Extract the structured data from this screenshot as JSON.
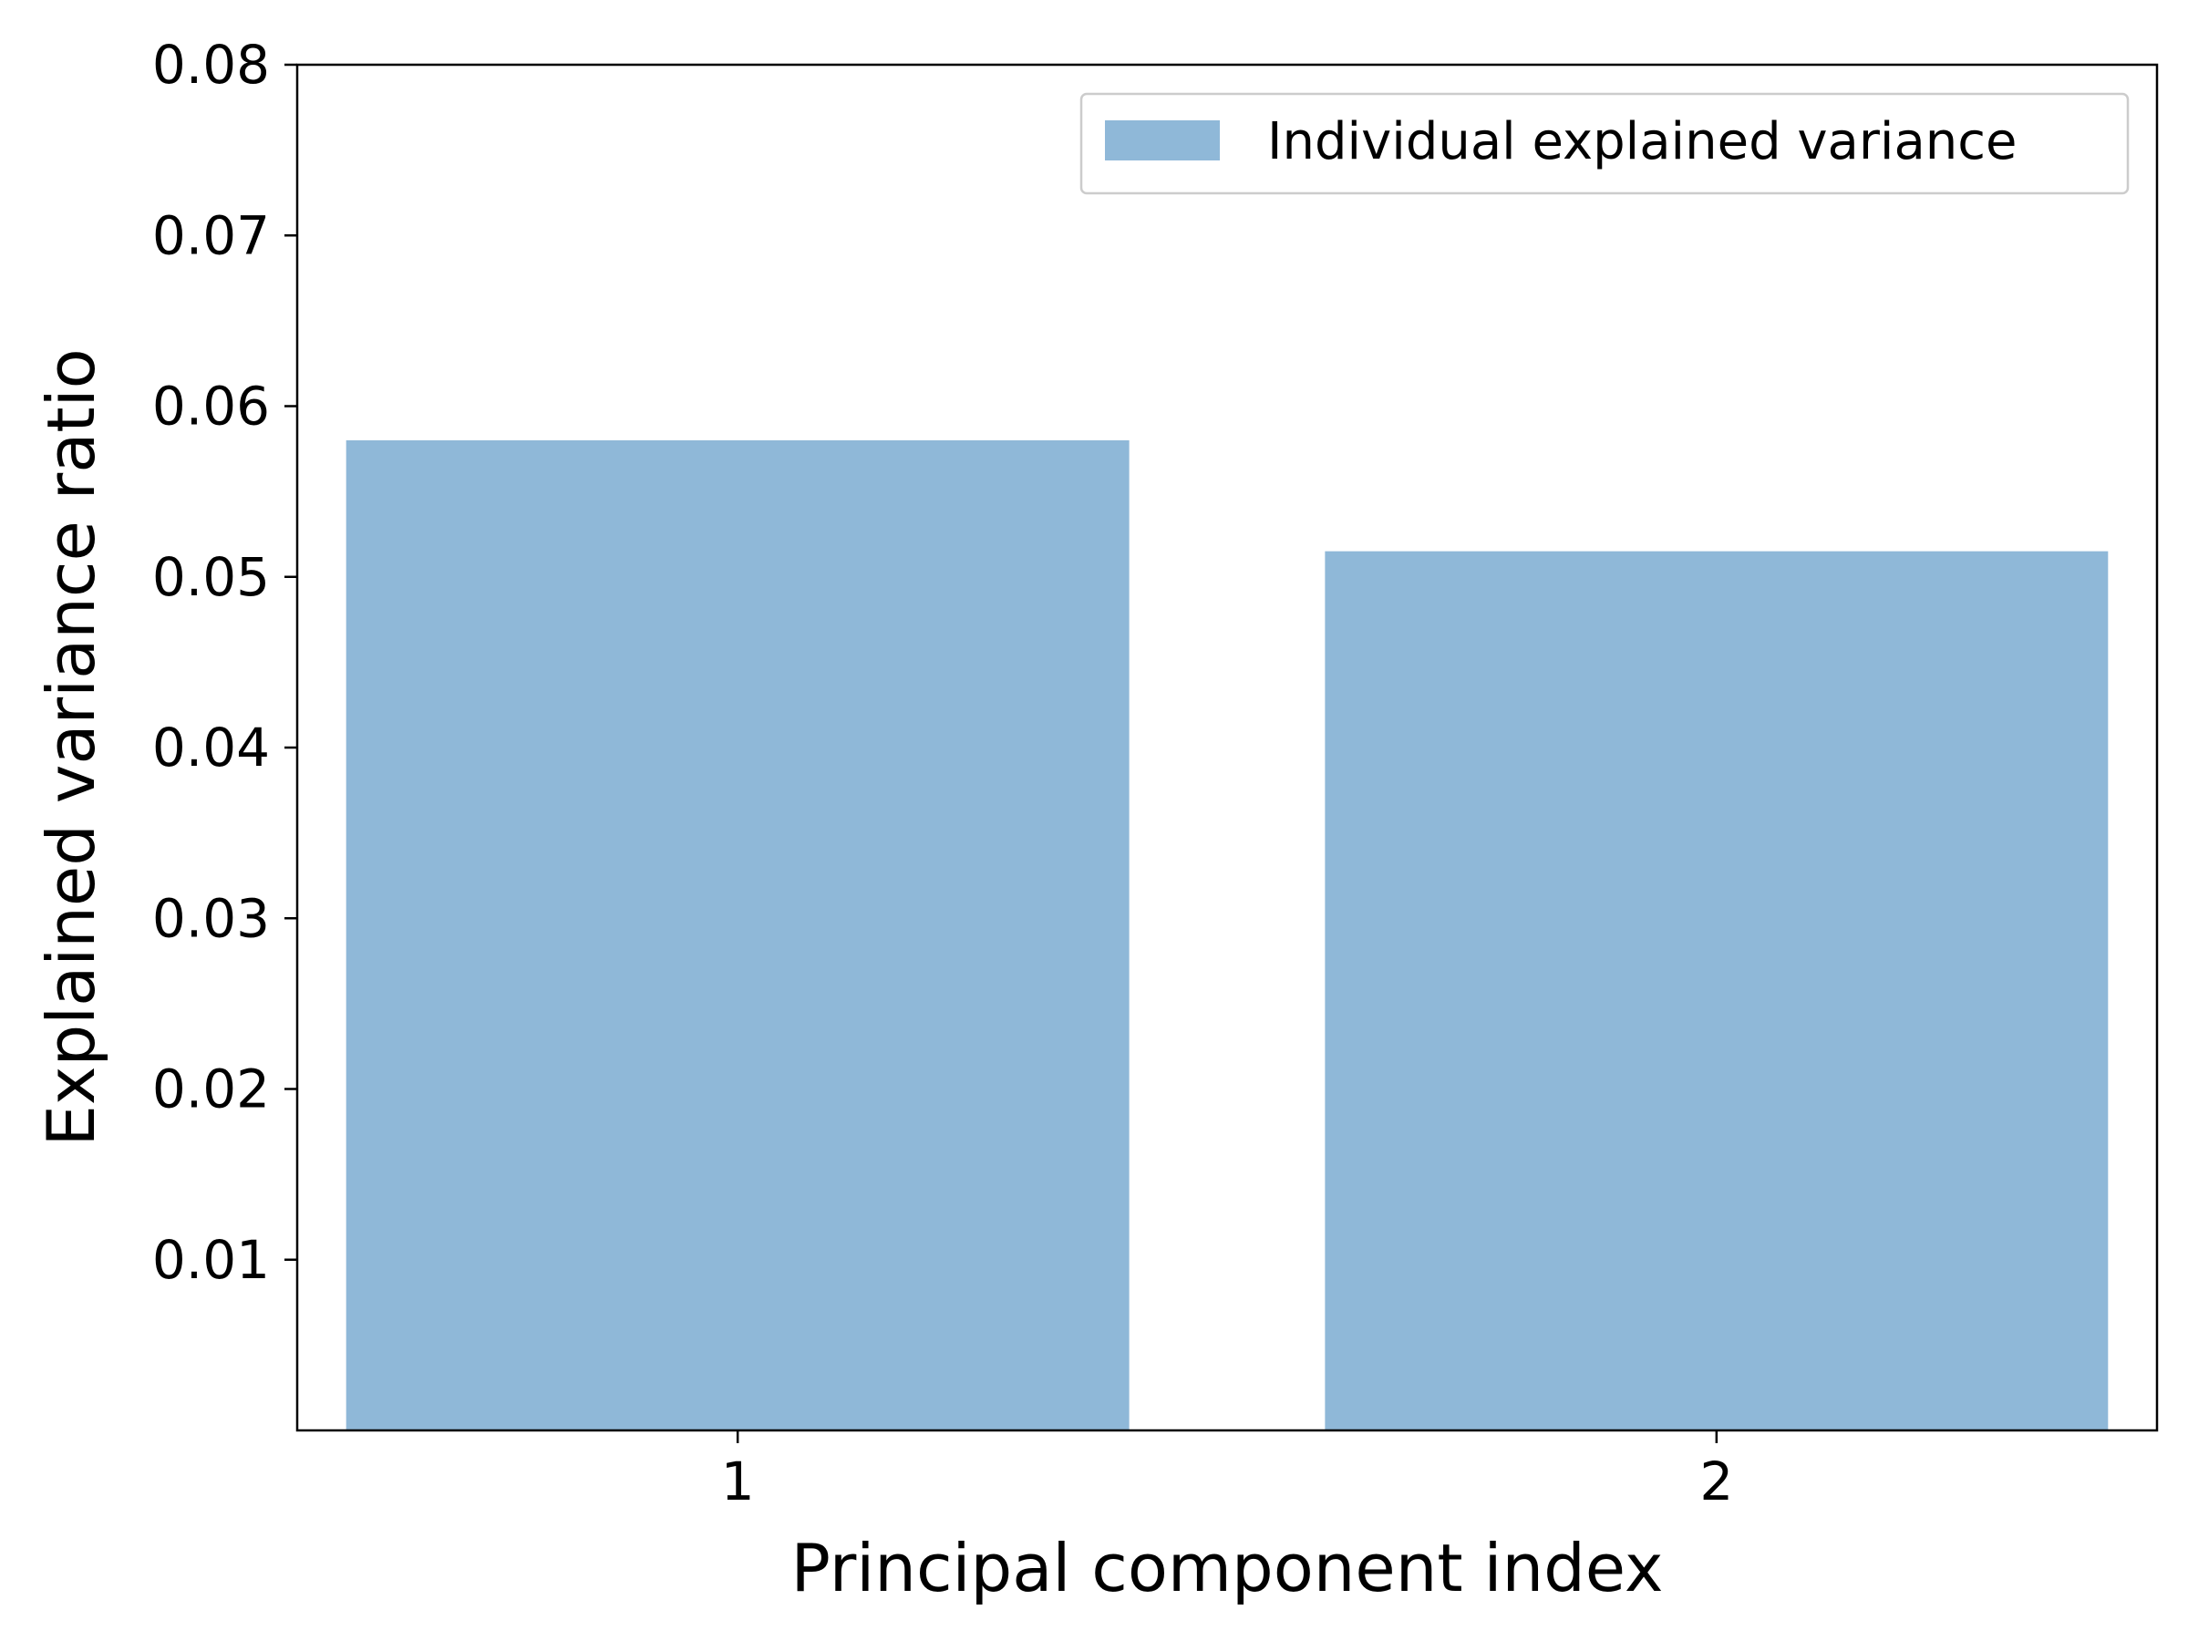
{
  "chart_data": {
    "type": "bar",
    "categories": [
      "1",
      "2"
    ],
    "series": [
      {
        "name": "Individual explained variance",
        "values": [
          0.058,
          0.0515
        ],
        "color": "#8fb8d8"
      }
    ],
    "xlabel": "Principal component index",
    "ylabel": "Explained variance ratio",
    "ylim": [
      0,
      0.08
    ],
    "yticks": [
      "0.01",
      "0.02",
      "0.03",
      "0.04",
      "0.05",
      "0.06",
      "0.07",
      "0.08"
    ],
    "legend_position": "top-right",
    "grid": false
  }
}
